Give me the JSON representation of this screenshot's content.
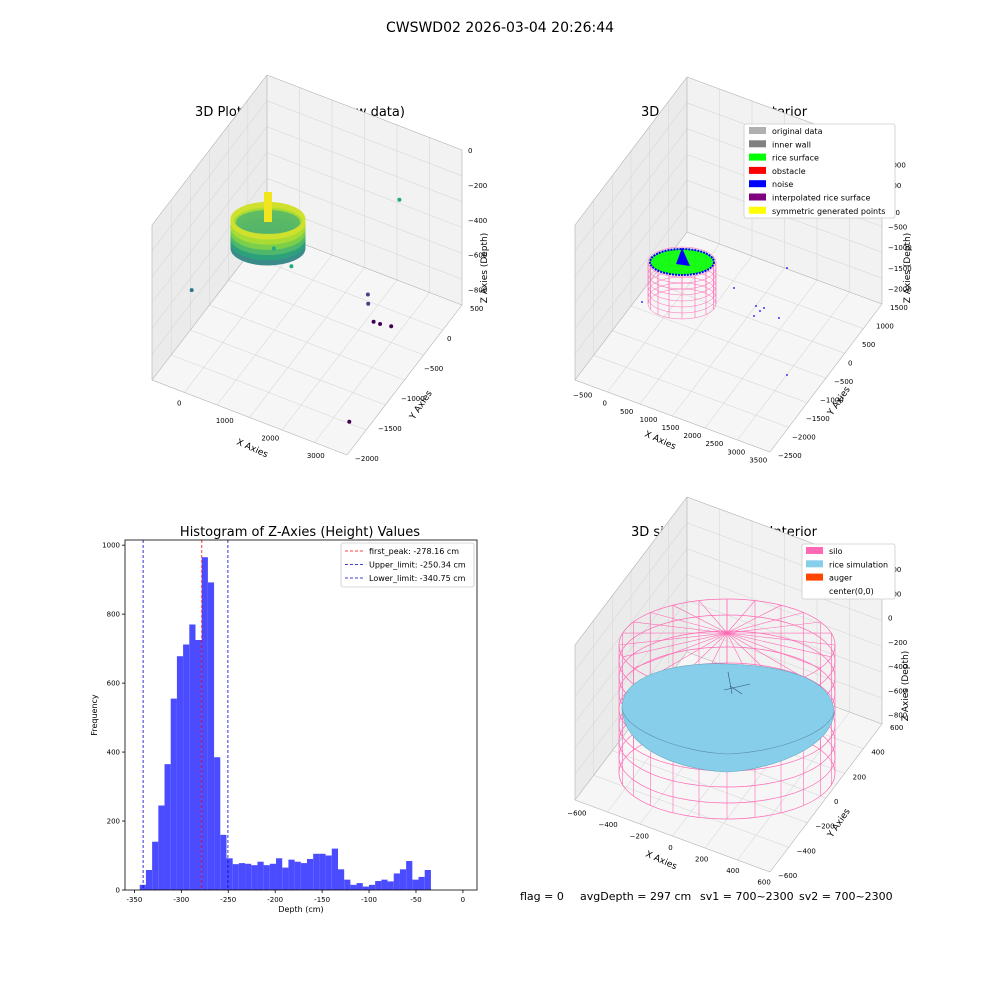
{
  "figure_title": "CWSWD02 2026-03-04 20:26:44",
  "status_line": {
    "flag": "flag = 0",
    "avg_depth": "avgDepth = 297 cm",
    "sv1": "sv1 = 700~2300",
    "sv2": "sv2 = 700~2300"
  },
  "colors": {
    "hist_bar": "#4b4bff",
    "first_peak_line": "#ff0000",
    "limit_line": "#0000c8",
    "silo_mesh": "#ff69b4",
    "rice_simulation": "#87ceeb",
    "auger": "#ff4500",
    "rice_surface": "#00ff00",
    "noise": "#0000ff",
    "pane_gray": "#f2f2f2",
    "grid_gray": "#d8d8d8"
  },
  "chart_data": [
    {
      "type": "scatter",
      "subtype": "3d",
      "title": "3D Plot of Silo Interior(row data)",
      "xlabel": "X Axies",
      "ylabel": "Y Axies",
      "zlabel": "Z Axies (Depth)",
      "x_ticks": [
        "0",
        "1000",
        "2000",
        "3000"
      ],
      "y_ticks": [
        "500",
        "0",
        "−500",
        "−1000",
        "−1500",
        "−2000"
      ],
      "z_ticks": [
        "0",
        "−200",
        "−400",
        "−600",
        "−800"
      ],
      "grid": true,
      "colormap": "viridis",
      "outlier_points": [
        {
          "x": -450,
          "y": -1500,
          "z": -560
        },
        {
          "x": 1100,
          "y": -1200,
          "z": -200
        },
        {
          "x": 1400,
          "y": -1100,
          "z": -320
        },
        {
          "x": 2600,
          "y": 250,
          "z": -200
        },
        {
          "x": 2300,
          "y": -200,
          "z": -720
        },
        {
          "x": 2350,
          "y": -250,
          "z": -760
        },
        {
          "x": 2600,
          "y": -400,
          "z": -800
        },
        {
          "x": 2700,
          "y": -350,
          "z": -820
        },
        {
          "x": 2900,
          "y": -300,
          "z": -830
        },
        {
          "x": 3200,
          "y": -1700,
          "z": -950
        }
      ]
    },
    {
      "type": "scatter",
      "subtype": "3d",
      "title": "3D classify of Silo Interior",
      "xlabel": "X Axies",
      "ylabel": "Y Axies",
      "zlabel": "Z Axies (Depth)",
      "x_ticks": [
        "−500",
        "0",
        "500",
        "1000",
        "1500",
        "2000",
        "2500",
        "3000",
        "3500"
      ],
      "y_ticks": [
        "1500",
        "1000",
        "500",
        "0",
        "−500",
        "−1000",
        "−1500",
        "−2000",
        "−2500"
      ],
      "z_ticks": [
        "1000",
        "500",
        "0",
        "−500",
        "−1000",
        "−1500",
        "−2000"
      ],
      "z_partial_tick": "00",
      "grid": true,
      "legend_position": "top-right",
      "legend": [
        {
          "label": "original data",
          "color": "#b0b0b0"
        },
        {
          "label": "inner wall",
          "color": "#808080"
        },
        {
          "label": "rice surface",
          "color": "#00ff00"
        },
        {
          "label": "obstacle",
          "color": "#ff0000"
        },
        {
          "label": "noise",
          "color": "#0000ff"
        },
        {
          "label": "interpolated rice surface",
          "color": "#800080"
        },
        {
          "label": "symmetric generated points",
          "color": "#ffff00"
        }
      ]
    },
    {
      "type": "bar",
      "subtype": "histogram",
      "title": "Histogram of Z-Axies (Height) Values",
      "xlabel": "Depth (cm)",
      "ylabel": "Frequency",
      "xlim": [
        -360,
        15
      ],
      "ylim": [
        0,
        1015
      ],
      "x_ticks": [
        -350,
        -300,
        -250,
        -200,
        -150,
        -100,
        -50,
        0
      ],
      "y_ticks": [
        0,
        200,
        400,
        600,
        800,
        1000
      ],
      "bin_width": 6.6,
      "bin_start": -344.3,
      "values": [
        15,
        58,
        140,
        245,
        365,
        555,
        678,
        712,
        770,
        725,
        965,
        892,
        385,
        160,
        92,
        75,
        78,
        76,
        72,
        82,
        72,
        76,
        92,
        65,
        88,
        82,
        78,
        90,
        105,
        105,
        100,
        120,
        60,
        30,
        15,
        20,
        10,
        15,
        26,
        30,
        25,
        48,
        60,
        84,
        30,
        38,
        58
      ],
      "vlines": [
        {
          "x": -278.16,
          "label": "first_peak: -278.16 cm",
          "color": "#ff0000"
        },
        {
          "x": -250.34,
          "label": "Upper_limit: -250.34 cm",
          "color": "#0000c8"
        },
        {
          "x": -340.75,
          "label": "Lower_limit: -340.75 cm",
          "color": "#0000c8"
        }
      ],
      "legend_position": "top-right",
      "grid": false
    },
    {
      "type": "scatter",
      "subtype": "3d-surface",
      "title": "3D simulation of Silo Interior",
      "xlabel": "X Axies",
      "ylabel": "Y Axies",
      "zlabel": "Z Axies (Depth)",
      "x_ticks": [
        "−600",
        "−400",
        "−200",
        "0",
        "200",
        "400",
        "600"
      ],
      "y_ticks": [
        "600",
        "400",
        "200",
        "0",
        "−200",
        "−400",
        "−600"
      ],
      "z_ticks": [
        "400",
        "200",
        "0",
        "−200",
        "−400",
        "−600",
        "−800"
      ],
      "grid": true,
      "legend_position": "top-right",
      "legend": [
        {
          "label": "silo",
          "color": "#ff69b4"
        },
        {
          "label": "rice simulation",
          "color": "#87ceeb"
        },
        {
          "label": "auger",
          "color": "#ff4500"
        },
        {
          "label": "center(0,0)",
          "color": "#ffffff"
        }
      ]
    }
  ]
}
